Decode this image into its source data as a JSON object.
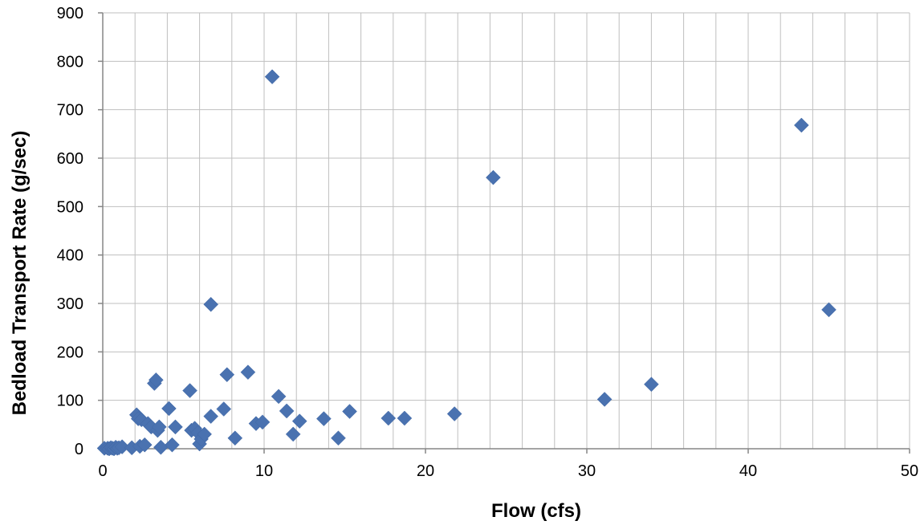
{
  "chart_data": {
    "type": "scatter",
    "title": "",
    "xlabel": "Flow (cfs)",
    "ylabel": "Bedload Transport Rate (g/sec)",
    "xlim": [
      0,
      50
    ],
    "ylim": [
      0,
      900
    ],
    "x_major_ticks": [
      0,
      10,
      20,
      30,
      40,
      50
    ],
    "x_minor_step": 2,
    "y_ticks": [
      0,
      100,
      200,
      300,
      400,
      500,
      600,
      700,
      800,
      900
    ],
    "grid": true,
    "legend": "none",
    "marker": "diamond",
    "colors": {
      "marker": "#4a72b0",
      "grid": "#bfbfbf",
      "axis": "#868686"
    },
    "series": [
      {
        "x": [
          0.1,
          0.3,
          0.4,
          0.5,
          0.6,
          0.7,
          0.8,
          0.9,
          1.0,
          1.2,
          1.8,
          2.1,
          2.2,
          2.3,
          2.4,
          2.6,
          2.8,
          3.0,
          3.2,
          3.3,
          3.4,
          3.5,
          3.6,
          4.1,
          4.3,
          4.5,
          5.4,
          5.5,
          5.7,
          5.9,
          6.0,
          6.1,
          6.3,
          6.7,
          6.7,
          7.5,
          7.7,
          8.2,
          9.0,
          9.5,
          9.9,
          10.5,
          10.9,
          11.4,
          11.8,
          12.2,
          13.7,
          14.6,
          15.3,
          17.7,
          18.7,
          21.8,
          24.2,
          31.1,
          34.0,
          43.3,
          45.0
        ],
        "y": [
          1,
          1,
          0,
          2,
          1,
          0,
          3,
          1,
          2,
          4,
          2,
          70,
          62,
          5,
          60,
          8,
          52,
          45,
          135,
          142,
          38,
          45,
          3,
          83,
          8,
          45,
          120,
          38,
          42,
          33,
          10,
          20,
          30,
          298,
          67,
          82,
          153,
          22,
          158,
          52,
          55,
          768,
          108,
          78,
          30,
          57,
          62,
          22,
          77,
          63,
          63,
          72,
          560,
          102,
          133,
          668,
          287
        ]
      }
    ]
  }
}
